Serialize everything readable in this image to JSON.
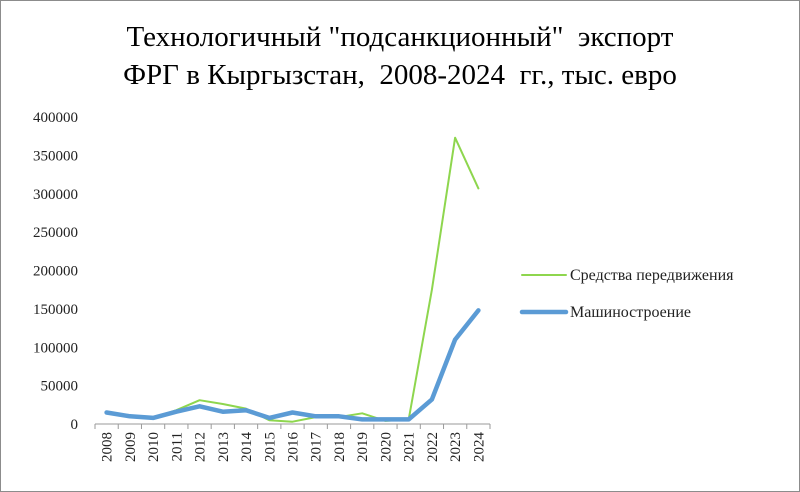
{
  "chart_data": {
    "type": "line",
    "title_lines": [
      "Технологичный \"подсанкционный\"  экспорт",
      "ФРГ в Кыргызстан,  2008-2024  гг., тыс. евро"
    ],
    "xlabel": "",
    "ylabel": "",
    "x": [
      "2008",
      "2009",
      "2010",
      "2011",
      "2012",
      "2013",
      "2014",
      "2015",
      "2016",
      "2017",
      "2018",
      "2019",
      "2020",
      "2021",
      "2022",
      "2023",
      "2024"
    ],
    "ylim": [
      0,
      400000
    ],
    "yticks": [
      "0",
      "50000",
      "100000",
      "150000",
      "200000",
      "250000",
      "300000",
      "350000",
      "400000"
    ],
    "grid": false,
    "legend_position": "right",
    "series": [
      {
        "name": "Средства передвижения",
        "color": "#8ed64e",
        "values": [
          14000,
          11000,
          8000,
          18000,
          31000,
          26000,
          20000,
          5000,
          3000,
          9000,
          9000,
          14000,
          4000,
          6000,
          175000,
          373000,
          307000
        ]
      },
      {
        "name": "Машиностроение",
        "color": "#5b9bd5",
        "values": [
          15000,
          10000,
          8000,
          16000,
          23000,
          16000,
          18000,
          8000,
          15000,
          10000,
          10000,
          6000,
          6000,
          6000,
          32000,
          110000,
          148000
        ]
      }
    ]
  }
}
